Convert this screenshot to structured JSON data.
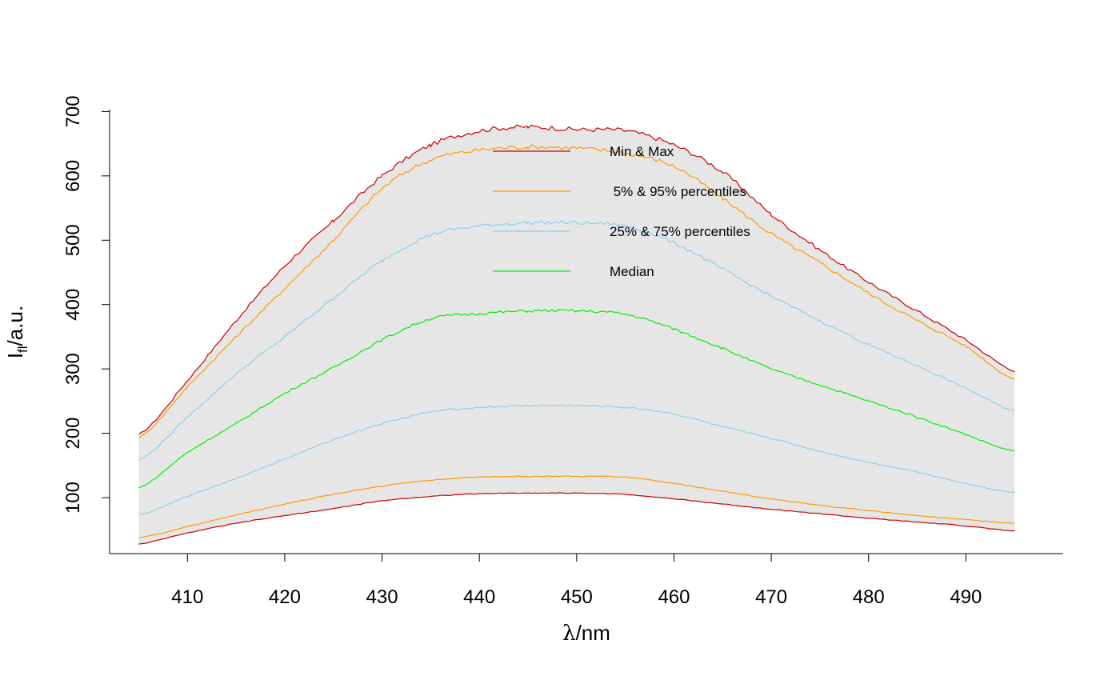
{
  "chart_data": {
    "type": "line",
    "title": "",
    "xlabel": {
      "symbol": "λ",
      "sep": "/",
      "unit": "nm"
    },
    "ylabel": {
      "main": "I",
      "sub": "fl",
      "sep": "/",
      "unit": "a.u."
    },
    "xlim": [
      402,
      500
    ],
    "ylim": [
      13,
      703
    ],
    "x_ticks": [
      410,
      420,
      430,
      440,
      450,
      460,
      470,
      480,
      490
    ],
    "y_ticks": [
      100,
      200,
      300,
      400,
      500,
      600,
      700
    ],
    "grid": false,
    "fill_color": "#e6e6e6",
    "legend": {
      "placement": "top-center",
      "entries": [
        {
          "label": "Min & Max",
          "color": "#cc0000"
        },
        {
          "label": " 5% & 95% percentiles",
          "color": "#ff9900"
        },
        {
          "label": "25% & 75% percentiles",
          "color": "#87ceeb"
        },
        {
          "label": "Median",
          "color": "#00ee00"
        }
      ]
    },
    "x": [
      405,
      410,
      415,
      420,
      425,
      430,
      435,
      440,
      445,
      450,
      455,
      460,
      465,
      470,
      475,
      480,
      485,
      490,
      495
    ],
    "series": [
      {
        "name": "Max",
        "color": "#cc0000",
        "values": [
          198,
          282,
          375,
          460,
          530,
          600,
          648,
          670,
          676,
          672,
          670,
          648,
          606,
          540,
          485,
          435,
          390,
          345,
          297
        ]
      },
      {
        "name": "95% percentile",
        "color": "#ff9900",
        "values": [
          193,
          272,
          350,
          425,
          500,
          580,
          625,
          640,
          645,
          643,
          635,
          615,
          565,
          510,
          465,
          418,
          375,
          335,
          284
        ]
      },
      {
        "name": "75% percentile",
        "color": "#87ceeb",
        "values": [
          158,
          225,
          292,
          350,
          410,
          468,
          508,
          522,
          527,
          527,
          522,
          496,
          455,
          413,
          375,
          338,
          305,
          270,
          235
        ]
      },
      {
        "name": "Median",
        "color": "#00ee00",
        "values": [
          115,
          170,
          215,
          262,
          302,
          345,
          378,
          386,
          390,
          390,
          385,
          362,
          332,
          300,
          275,
          250,
          225,
          198,
          172
        ]
      },
      {
        "name": "25% percentile",
        "color": "#87ceeb",
        "values": [
          73,
          102,
          130,
          160,
          190,
          215,
          233,
          240,
          243,
          243,
          240,
          230,
          210,
          192,
          172,
          155,
          140,
          122,
          108
        ]
      },
      {
        "name": "5% percentile",
        "color": "#ff9900",
        "values": [
          38,
          55,
          73,
          90,
          105,
          118,
          127,
          132,
          133,
          133,
          132,
          122,
          110,
          98,
          88,
          80,
          72,
          66,
          60
        ]
      },
      {
        "name": "Min",
        "color": "#cc0000",
        "values": [
          28,
          45,
          60,
          72,
          83,
          95,
          102,
          106,
          107,
          107,
          105,
          98,
          90,
          82,
          75,
          68,
          62,
          56,
          48
        ]
      }
    ]
  }
}
